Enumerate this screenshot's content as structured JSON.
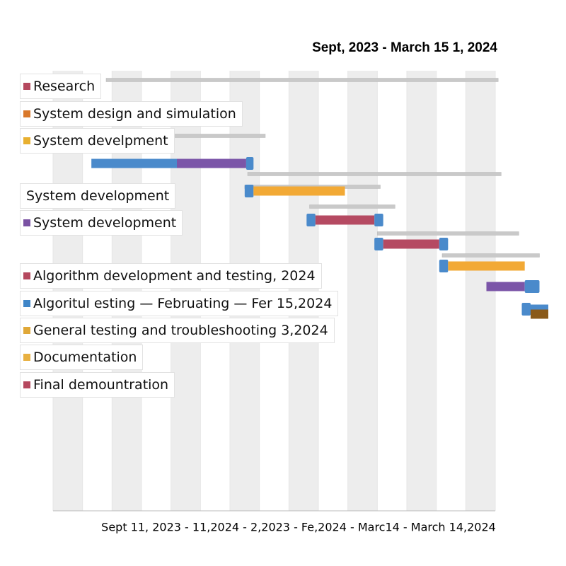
{
  "chart_data": {
    "type": "gantt",
    "title": "Sept, 2023 - March 15 1, 2024",
    "x_label": "Sept 11, 2023 - 11,2024 - 2,2023 - Fe,2024 - Marc14 - March 14,2024",
    "xlim": [
      0,
      15
    ],
    "span_color": "#c9c9c9",
    "legend": [
      {
        "name": "Research",
        "color": "#b5485e"
      },
      {
        "name": "System design and simulation",
        "color": "#d9782a"
      },
      {
        "name": "System develpment",
        "color": "#e8b030"
      },
      {
        "name": "System development"
      },
      {
        "name": "System development",
        "color": "#7a52a3"
      },
      {
        "name": "Algorithm development and testing, 2024",
        "color": "#b5485e"
      },
      {
        "name": "Algoritul esting — Februating  — Fer 15,2024",
        "color": "#3f86c8"
      },
      {
        "name": "General testing and troubleshooting 3,2024",
        "color": "#e0a838"
      },
      {
        "name": "Documentation",
        "color": "#e8b040"
      },
      {
        "name": "Final demountration",
        "color": "#b5485e"
      }
    ],
    "spans": [
      {
        "start": 1.8,
        "end": 15.1
      },
      {
        "start": 4.0,
        "end": 7.2
      },
      {
        "start": 6.6,
        "end": 15.2
      },
      {
        "start": 6.5,
        "end": 11.1
      },
      {
        "start": 8.7,
        "end": 11.6
      },
      {
        "start": 11.0,
        "end": 15.8
      },
      {
        "start": 13.2,
        "end": 16.5
      }
    ],
    "tasks": [
      {
        "segments": [
          {
            "color": "#4a8acb",
            "start": 1.3,
            "end": 4.2
          },
          {
            "color": "#7b55a8",
            "start": 4.2,
            "end": 6.55
          },
          {
            "color": "#4a8acb",
            "start": 6.55,
            "end": 6.8,
            "cap": true
          }
        ]
      },
      {
        "segments": [
          {
            "color": "#4a8acb",
            "start": 6.5,
            "end": 6.8,
            "cap": true
          },
          {
            "color": "#f2a935",
            "start": 6.8,
            "end": 9.9
          }
        ]
      },
      {
        "segments": [
          {
            "color": "#4a8acb",
            "start": 8.6,
            "end": 8.9,
            "cap": true
          },
          {
            "color": "#b54a62",
            "start": 8.9,
            "end": 10.9
          },
          {
            "color": "#4a8acb",
            "start": 10.9,
            "end": 11.2,
            "cap": true
          }
        ]
      },
      {
        "segments": [
          {
            "color": "#4a8acb",
            "start": 10.9,
            "end": 11.2,
            "cap": true
          },
          {
            "color": "#b54a62",
            "start": 11.2,
            "end": 13.1
          },
          {
            "color": "#4a8acb",
            "start": 13.1,
            "end": 13.4,
            "cap": true
          }
        ]
      },
      {
        "segments": [
          {
            "color": "#4a8acb",
            "start": 13.1,
            "end": 13.4,
            "cap": true
          },
          {
            "color": "#f2a935",
            "start": 13.4,
            "end": 16.0
          }
        ]
      },
      {
        "segments": [
          {
            "color": "#7b55a8",
            "start": 14.7,
            "end": 16.0
          },
          {
            "color": "#4a8acb",
            "start": 16.0,
            "end": 16.5,
            "cap": true
          }
        ]
      },
      {
        "segments": [
          {
            "color": "#4a8acb",
            "start": 15.9,
            "end": 16.2,
            "cap": true
          },
          {
            "color": "#4a8acb",
            "start": 16.2,
            "end": 16.8
          }
        ]
      },
      {
        "segments": [
          {
            "color": "#8a5a1a",
            "start": 16.2,
            "end": 16.8
          }
        ]
      }
    ]
  }
}
